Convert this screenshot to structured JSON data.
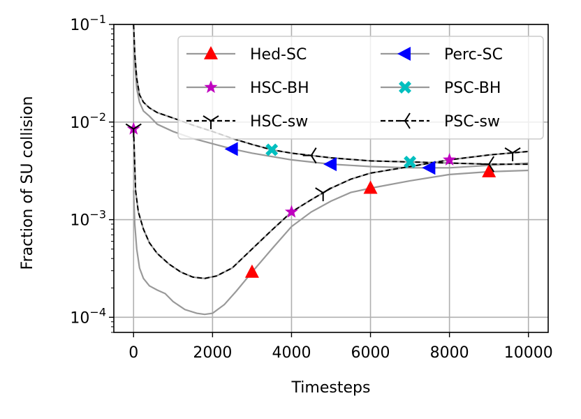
{
  "chart_data": {
    "type": "line",
    "title": "",
    "xlabel": "Timesteps",
    "ylabel": "Fraction of SU collision",
    "xlim": [
      -500,
      10500
    ],
    "ylim": [
      7e-05,
      0.1
    ],
    "yscale": "log",
    "grid": true,
    "legend_position": "top-right",
    "x_ticks": [
      0,
      2000,
      4000,
      6000,
      8000,
      10000
    ],
    "x_tick_labels": [
      "0",
      "2000",
      "4000",
      "6000",
      "8000",
      "10000"
    ],
    "y_ticks": [
      0.0001,
      0.001,
      0.01,
      0.1
    ],
    "y_tick_labels": [
      {
        "base": "10",
        "exp": "−4"
      },
      {
        "base": "10",
        "exp": "−3"
      },
      {
        "base": "10",
        "exp": "−2"
      },
      {
        "base": "10",
        "exp": "−1"
      }
    ],
    "series": [
      {
        "name": "Hed-SC",
        "line_color": "#999999",
        "line_style": "solid",
        "marker": "triangle-up",
        "marker_color": "#ff0000",
        "x": [
          0,
          30,
          80,
          150,
          250,
          400,
          600,
          800,
          1000,
          1300,
          1600,
          1800,
          2000,
          2300,
          2600,
          3000,
          3500,
          4000,
          4500,
          5000,
          5500,
          6000,
          7000,
          8000,
          9000,
          10000
        ],
        "y": [
          0.002,
          0.0009,
          0.0005,
          0.00032,
          0.00025,
          0.00021,
          0.00019,
          0.000175,
          0.000145,
          0.00012,
          0.00011,
          0.000107,
          0.00011,
          0.000135,
          0.000185,
          0.00029,
          0.0005,
          0.00085,
          0.0012,
          0.00155,
          0.0019,
          0.0021,
          0.0025,
          0.0029,
          0.0031,
          0.0032
        ],
        "marker_x": [
          3000,
          6000,
          9000
        ]
      },
      {
        "name": "HSC-BH",
        "line_color": "#999999",
        "line_style": "solid",
        "marker": "star",
        "marker_color": "#bf00bf",
        "x": [
          0,
          50,
          120,
          250,
          400,
          600,
          900,
          1200,
          1500,
          1800,
          2100,
          2500,
          3000,
          3500,
          4000,
          4500,
          5000,
          5500,
          6000,
          7000,
          8000,
          9000,
          10000
        ],
        "y": [
          0.0085,
          0.002,
          0.0012,
          0.0008,
          0.00058,
          0.00045,
          0.00035,
          0.00029,
          0.000258,
          0.00025,
          0.000265,
          0.00032,
          0.0005,
          0.00078,
          0.0012,
          0.0016,
          0.0021,
          0.0026,
          0.003,
          0.0035,
          0.0041,
          0.0046,
          0.005
        ],
        "marker_x": [
          0,
          4000,
          8000
        ]
      },
      {
        "name": "HSC-sw",
        "line_color": "#000000",
        "line_style": "dashed",
        "marker": "tri-down",
        "marker_color": "#000000",
        "x": [
          0,
          50,
          120,
          250,
          400,
          600,
          900,
          1200,
          1500,
          1800,
          2100,
          2500,
          3000,
          3500,
          4000,
          4500,
          5000,
          5500,
          6000,
          7000,
          8000,
          9000,
          10000
        ],
        "y": [
          0.0085,
          0.002,
          0.0012,
          0.0008,
          0.00058,
          0.00045,
          0.00035,
          0.00029,
          0.000258,
          0.00025,
          0.000265,
          0.00032,
          0.0005,
          0.00078,
          0.0012,
          0.0016,
          0.0021,
          0.0026,
          0.003,
          0.0035,
          0.0041,
          0.0046,
          0.005
        ],
        "marker_x": [
          0,
          4800,
          9600
        ]
      },
      {
        "name": "Perc-SC",
        "line_color": "#999999",
        "line_style": "solid",
        "marker": "triangle-left",
        "marker_color": "#0000ff",
        "x": [
          0,
          30,
          80,
          150,
          250,
          400,
          600,
          1000,
          1500,
          2000,
          2500,
          3000,
          4000,
          5000,
          6000,
          7000,
          8000,
          9000,
          10000
        ],
        "y": [
          0.1,
          0.04,
          0.022,
          0.016,
          0.013,
          0.0115,
          0.0095,
          0.008,
          0.0068,
          0.006,
          0.0053,
          0.0048,
          0.0041,
          0.0037,
          0.0035,
          0.0034,
          0.0034,
          0.0036,
          0.0038
        ],
        "marker_x": [
          2500,
          5000,
          7500
        ]
      },
      {
        "name": "PSC-BH",
        "line_color": "#999999",
        "line_style": "solid",
        "marker": "x-filled",
        "marker_color": "#00bfbf",
        "x": [
          0,
          30,
          80,
          150,
          250,
          400,
          600,
          1000,
          1500,
          2000,
          2500,
          3000,
          3500,
          4000,
          5000,
          6000,
          7000,
          8000,
          9000,
          10000
        ],
        "y": [
          0.1,
          0.05,
          0.028,
          0.019,
          0.016,
          0.014,
          0.0125,
          0.011,
          0.0093,
          0.008,
          0.0068,
          0.0059,
          0.0052,
          0.0048,
          0.0043,
          0.004,
          0.0039,
          0.0038,
          0.0037,
          0.0037
        ],
        "marker_x": [
          3500,
          7000
        ]
      },
      {
        "name": "PSC-sw",
        "line_color": "#000000",
        "line_style": "dashed",
        "marker": "tri-left",
        "marker_color": "#000000",
        "x": [
          0,
          30,
          80,
          150,
          250,
          400,
          600,
          1000,
          1500,
          2000,
          2500,
          3000,
          3500,
          4000,
          5000,
          6000,
          7000,
          8000,
          9000,
          10000
        ],
        "y": [
          0.1,
          0.05,
          0.028,
          0.019,
          0.016,
          0.014,
          0.0125,
          0.011,
          0.0093,
          0.008,
          0.0068,
          0.0059,
          0.0052,
          0.0048,
          0.0043,
          0.004,
          0.0039,
          0.0038,
          0.0037,
          0.0037
        ],
        "marker_x": [
          4500,
          9000
        ]
      }
    ]
  }
}
